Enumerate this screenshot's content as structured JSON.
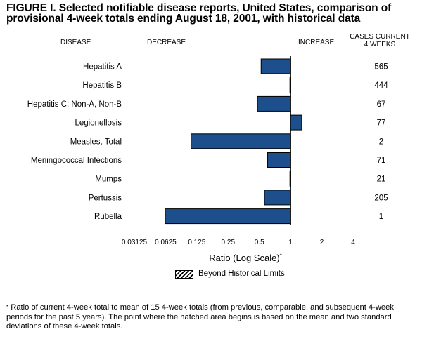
{
  "figure": {
    "title_line1": "FIGURE I. Selected notifiable disease reports, United States, comparison of",
    "title_line2": "provisional 4-week totals ending August 18, 2001, with historical data"
  },
  "headers": {
    "disease": "DISEASE",
    "decrease": "DECREASE",
    "increase": "INCREASE",
    "cases_line1": "CASES CURRENT",
    "cases_line2": "4 WEEKS"
  },
  "legend": {
    "label": "Beyond Historical Limits"
  },
  "footnote": {
    "marker": "*",
    "text": "Ratio of current 4-week total to mean of 15 4-week totals (from previous, comparable, and subsequent 4-week periods for the past 5 years). The point where the hatched area begins is based on the mean and two standard deviations of these 4-week totals."
  },
  "chart_data": {
    "type": "bar",
    "orientation": "horizontal",
    "x_scale": "log2",
    "baseline": 1,
    "xlabel": "Ratio (Log Scale)",
    "xlabel_marker": "*",
    "xlim": [
      0.03125,
      4
    ],
    "x_ticks": [
      "0.03125",
      "0.0625",
      "0.125",
      "0.25",
      "0.5",
      "1",
      "2",
      "4"
    ],
    "x_tick_values": [
      0.03125,
      0.0625,
      0.125,
      0.25,
      0.5,
      1,
      2,
      4
    ],
    "categories": [
      "Hepatitis A",
      "Hepatitis B",
      "Hepatitis C; Non-A, Non-B",
      "Legionellosis",
      "Measles, Total",
      "Meningococcal Infections",
      "Mumps",
      "Pertussis",
      "Rubella"
    ],
    "values": [
      0.52,
      0.985,
      0.48,
      1.28,
      0.11,
      0.6,
      0.985,
      0.56,
      0.062
    ],
    "cases_current_4_weeks": [
      "565",
      "444",
      "67",
      "77",
      "2",
      "71",
      "21",
      "205",
      "1"
    ],
    "bar_color": "#1d4f8c"
  }
}
